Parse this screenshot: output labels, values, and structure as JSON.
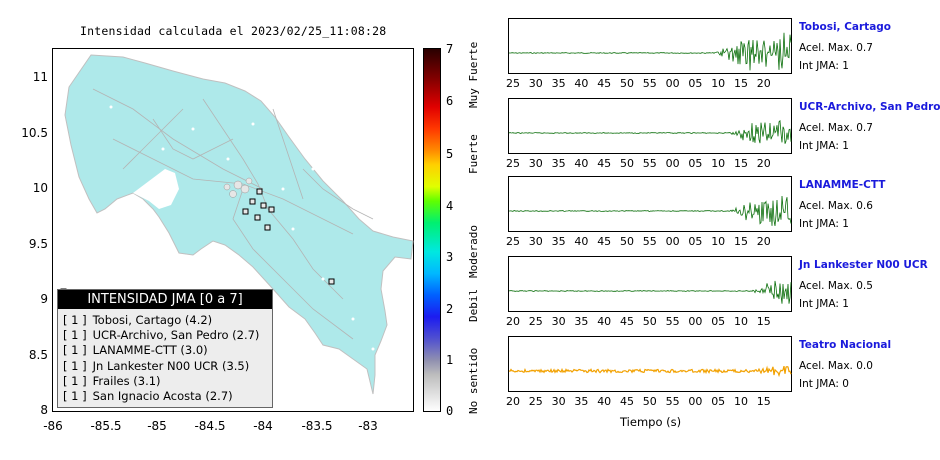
{
  "map": {
    "title": "Intensidad calculada el 2023/02/25_11:08:28",
    "y_ticks": [
      "11",
      "10.5",
      "10",
      "9.5",
      "9",
      "8.5",
      "8"
    ],
    "x_ticks": [
      "-86",
      "-85.5",
      "-85",
      "-84.5",
      "-84",
      "-83.5",
      "-83"
    ],
    "land_color": "#aee9ea",
    "sea_color": "#ffffff"
  },
  "colorbar": {
    "numbers": [
      "7",
      "6",
      "5",
      "4",
      "3",
      "2",
      "1",
      "0"
    ],
    "words": [
      "Muy Fuerte",
      "Fuerte",
      "Moderado",
      "Debil",
      "No sentido"
    ]
  },
  "legend": {
    "title": "INTENSIDAD JMA [0 a 7]",
    "items": [
      {
        "count": "[ 1 ]",
        "label": "Tobosi, Cartago (4.2)"
      },
      {
        "count": "[ 1 ]",
        "label": "UCR-Archivo, San Pedro (2.7)"
      },
      {
        "count": "[ 1 ]",
        "label": "LANAMME-CTT (3.0)"
      },
      {
        "count": "[ 1 ]",
        "label": "Jn Lankester N00 UCR (3.5)"
      },
      {
        "count": "[ 1 ]",
        "label": "Frailes (3.1)"
      },
      {
        "count": "[ 1 ]",
        "label": "San Ignacio Acosta (2.7)"
      }
    ]
  },
  "traces": [
    {
      "name": "Tobosi, Cartago",
      "acel": "Acel. Max. 0.7",
      "int": "Int JMA: 1",
      "ticks": [
        "25",
        "30",
        "35",
        "40",
        "45",
        "50",
        "55",
        "00",
        "05",
        "10",
        "15",
        "20"
      ],
      "color": "#0a6e0a"
    },
    {
      "name": "UCR-Archivo, San Pedro",
      "acel": "Acel. Max. 0.7",
      "int": "Int JMA: 1",
      "ticks": [
        "25",
        "30",
        "35",
        "40",
        "45",
        "50",
        "55",
        "00",
        "05",
        "10",
        "15",
        "20"
      ],
      "color": "#0a6e0a"
    },
    {
      "name": "LANAMME-CTT",
      "acel": "Acel. Max. 0.6",
      "int": "Int JMA: 1",
      "ticks": [
        "25",
        "30",
        "35",
        "40",
        "45",
        "50",
        "55",
        "00",
        "05",
        "10",
        "15",
        "20"
      ],
      "color": "#0a6e0a"
    },
    {
      "name": "Jn Lankester N00 UCR",
      "acel": "Acel. Max. 0.5",
      "int": "Int JMA: 1",
      "ticks": [
        "20",
        "25",
        "30",
        "35",
        "40",
        "45",
        "50",
        "55",
        "00",
        "05",
        "10",
        "15"
      ],
      "color": "#0a6e0a"
    },
    {
      "name": "Teatro Nacional",
      "acel": "Acel. Max. 0.0",
      "int": "Int JMA: 0",
      "ticks": [
        "20",
        "25",
        "30",
        "35",
        "40",
        "45",
        "50",
        "55",
        "00",
        "05",
        "10",
        "15"
      ],
      "color": "#f2a100"
    }
  ],
  "xaxis_title": "Tiempo (s)"
}
